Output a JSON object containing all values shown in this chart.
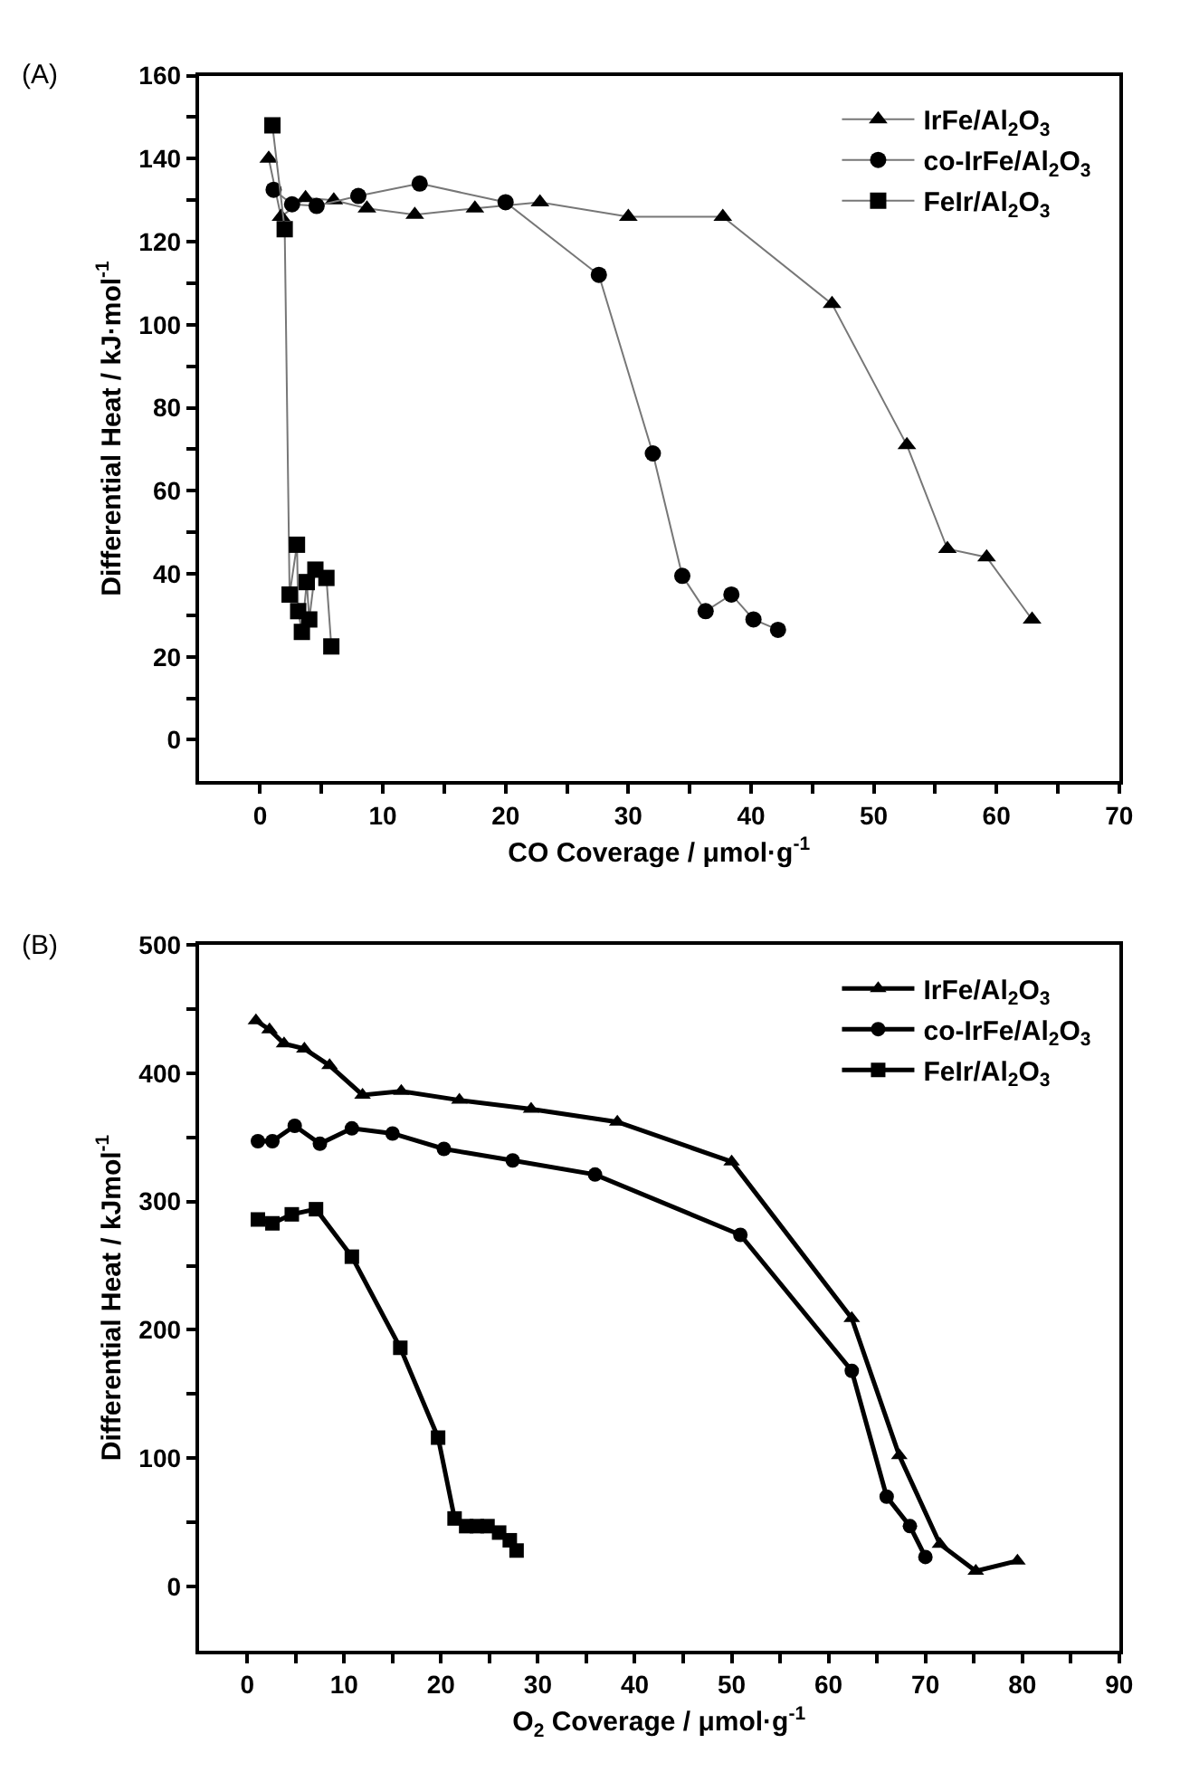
{
  "chart_data": [
    {
      "type": "line",
      "annotations": [
        "(A)"
      ],
      "xlabel": "CO Coverage / μmol·g$^{-1}$",
      "ylabel": "Differential Heat / kJ·mol$^{-1}$",
      "xlim": [
        -5,
        70
      ],
      "ylim": [
        -10,
        160
      ],
      "xticks": [
        0,
        {
          "value": 5,
          "label": null
        },
        10,
        {
          "value": 15,
          "label": null
        },
        20,
        {
          "value": 25,
          "label": null
        },
        30,
        {
          "value": 35,
          "label": null
        },
        40,
        {
          "value": 45,
          "label": null
        },
        50,
        {
          "value": 55,
          "label": null
        },
        60,
        {
          "value": 65,
          "label": null
        },
        70
      ],
      "yticks": [
        0,
        {
          "value": 10,
          "label": null
        },
        20,
        {
          "value": 30,
          "label": null
        },
        40,
        {
          "value": 50,
          "label": null
        },
        60,
        {
          "value": 70,
          "label": null
        },
        80,
        {
          "value": 90,
          "label": null
        },
        100,
        {
          "value": 110,
          "label": null
        },
        120,
        {
          "value": 130,
          "label": null
        },
        140,
        {
          "value": 150,
          "label": null
        },
        160
      ],
      "legend": "top right",
      "series": [
        {
          "name": "IrFe/Al$_{2}$O$_{3}$",
          "color": "#000000",
          "marker": "triangle",
          "x": [
            0.7,
            1.7,
            3.7,
            6,
            8.7,
            12.6,
            17.5,
            22.8,
            30,
            37.7,
            46.6,
            52.7,
            56,
            59.2,
            62.9
          ],
          "values": [
            140,
            126,
            130.5,
            130,
            128,
            126.5,
            128,
            129.5,
            126,
            126,
            105,
            71,
            46,
            44,
            29
          ]
        },
        {
          "name": "co-IrFe/Al$_{2}$O$_{3}$",
          "color": "#000000",
          "marker": "circle",
          "x": [
            1.1,
            2.6,
            4.6,
            8,
            13,
            20,
            27.6,
            32,
            34.4,
            36.3,
            38.4,
            40.2,
            42.2
          ],
          "values": [
            132.5,
            129,
            128.6,
            131,
            134,
            129.5,
            112,
            69,
            39.5,
            31,
            35,
            29,
            26.5
          ]
        },
        {
          "name": "FeIr/Al$_{2}$O$_{3}$",
          "color": "#000000",
          "marker": "square",
          "x": [
            1,
            2,
            2.4,
            3,
            3.1,
            3.4,
            3.8,
            4,
            4.5,
            5.4,
            5.8
          ],
          "values": [
            148,
            123,
            35,
            47,
            31,
            26,
            38,
            29,
            41,
            39,
            22.5
          ]
        }
      ]
    },
    {
      "type": "line",
      "annotations": [
        "(B)"
      ],
      "xlabel": "O$_{2}$ Coverage / μmol·g$^{-1}$",
      "ylabel": "Differential Heat / kJmol$^{-1}$",
      "xlim": [
        -5,
        90
      ],
      "ylim": [
        -50,
        500
      ],
      "xticks": [
        0,
        {
          "value": 5,
          "label": null
        },
        10,
        {
          "value": 15,
          "label": null
        },
        20,
        {
          "value": 25,
          "label": null
        },
        30,
        {
          "value": 35,
          "label": null
        },
        40,
        {
          "value": 45,
          "label": null
        },
        50,
        {
          "value": 55,
          "label": null
        },
        60,
        {
          "value": 65,
          "label": null
        },
        70,
        {
          "value": 75,
          "label": null
        },
        80,
        {
          "value": 85,
          "label": null
        },
        90
      ],
      "yticks": [
        0,
        {
          "value": 50,
          "label": null
        },
        100,
        {
          "value": 150,
          "label": null
        },
        200,
        {
          "value": 250,
          "label": null
        },
        300,
        {
          "value": 350,
          "label": null
        },
        400,
        {
          "value": 450,
          "label": null
        },
        500
      ],
      "legend": "top right",
      "series": [
        {
          "name": "IrFe/Al$_{2}$O$_{3}$",
          "color": "#000000",
          "marker": "triangle",
          "x": [
            0.9,
            2.3,
            3.8,
            5.9,
            8.5,
            11.9,
            15.9,
            21.9,
            29.3,
            38.2,
            50,
            62.4,
            67.3,
            71.5,
            75.2,
            79.5
          ],
          "values": [
            441,
            434,
            423,
            419,
            406,
            383,
            386,
            379,
            372,
            362,
            331,
            209,
            102,
            33,
            12,
            20
          ]
        },
        {
          "name": "co-IrFe/Al$_{2}$O$_{3}$",
          "color": "#000000",
          "marker": "circle",
          "x": [
            1.1,
            2.6,
            4.9,
            7.5,
            10.8,
            15,
            20.3,
            27.4,
            35.9,
            50.9,
            62.4,
            66,
            68.4,
            70
          ],
          "values": [
            347,
            347,
            359,
            345,
            357,
            353,
            341,
            332,
            321,
            274,
            168,
            70,
            47,
            23
          ]
        },
        {
          "name": "FeIr/Al$_{2}$O$_{3}$",
          "color": "#000000",
          "marker": "square",
          "x": [
            1.1,
            2.6,
            4.6,
            7.1,
            10.8,
            15.8,
            19.7,
            21.4,
            22.6,
            23.7,
            24.8,
            26,
            27.1,
            27.8
          ],
          "values": [
            286,
            283,
            290,
            294,
            257,
            186,
            116,
            53,
            47,
            47,
            47,
            42,
            36,
            28
          ]
        }
      ]
    }
  ]
}
